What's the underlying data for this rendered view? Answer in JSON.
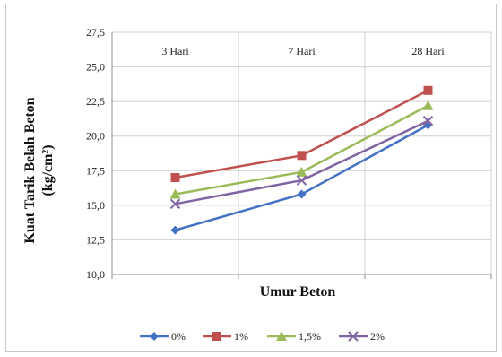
{
  "chart_data": {
    "type": "line",
    "title": "",
    "xlabel": "Umur Beton",
    "ylabel_line1": "Kuat Tarik Belah Beton",
    "ylabel_line2": "(kg/cm²)",
    "categories": [
      "3 Hari",
      "7 Hari",
      "28 Hari"
    ],
    "ylim": [
      10,
      27.5
    ],
    "yticks": [
      "10,0",
      "12,5",
      "15,0",
      "17,5",
      "20,0",
      "22,5",
      "25,0",
      "27,5"
    ],
    "grid": true,
    "legend_position": "bottom",
    "series": [
      {
        "name": "0%",
        "values": [
          13.2,
          15.8,
          20.8
        ],
        "color": "#4472C4",
        "marker": "diamond"
      },
      {
        "name": "1%",
        "values": [
          17.0,
          18.6,
          23.3
        ],
        "color": "#C0504D",
        "marker": "square"
      },
      {
        "name": "1,5%",
        "values": [
          15.8,
          17.4,
          22.2
        ],
        "color": "#9BBB59",
        "marker": "triangle"
      },
      {
        "name": "2%",
        "values": [
          15.1,
          16.8,
          21.1
        ],
        "color": "#8064A2",
        "marker": "x"
      }
    ]
  }
}
